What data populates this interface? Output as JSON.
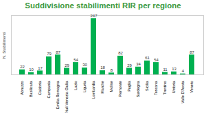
{
  "chart_data": {
    "type": "bar",
    "title": "Suddivisione stabilimenti RIR per regione",
    "y_label": "N. Stabilimenti",
    "categories": [
      "Abruzzo",
      "Basilicata",
      "Calabria",
      "Campania",
      "Emilia-Romagna",
      "Friuli Venezia Giulia",
      "Lazio",
      "Liguria",
      "Lombardia",
      "Marche",
      "Molise",
      "Piemonte",
      "Puglia",
      "Sardegna",
      "Sicilia",
      "Toscana",
      "Trentino",
      "Umbria",
      "Valle D'Aosta",
      "Veneto"
    ],
    "values": [
      22,
      10,
      17,
      79,
      87,
      29,
      54,
      30,
      247,
      18,
      8,
      82,
      29,
      34,
      61,
      54,
      11,
      13,
      4,
      87
    ],
    "color": "#00b050",
    "ylim": [
      0,
      260
    ],
    "data_labels": true,
    "tick_labels": "x",
    "grid": false
  }
}
